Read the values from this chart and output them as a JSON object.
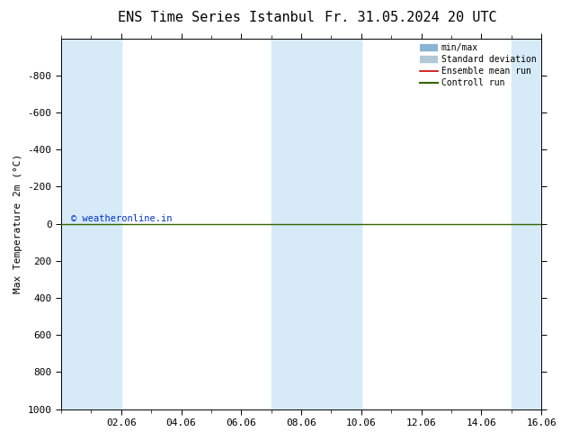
{
  "title": "ENS Time Series Istanbul",
  "title2": "Fr. 31.05.2024 20 UTC",
  "ylabel": "Max Temperature 2m (°C)",
  "ylim_bottom": 1000,
  "ylim_top": -1000,
  "yticks": [
    -800,
    -600,
    -400,
    -200,
    0,
    200,
    400,
    600,
    800,
    1000
  ],
  "xlim_min": 0,
  "xlim_max": 16,
  "xtick_labels": [
    "02.06",
    "04.06",
    "06.06",
    "08.06",
    "10.06",
    "12.06",
    "14.06",
    "16.06"
  ],
  "xtick_positions": [
    2,
    4,
    6,
    8,
    10,
    12,
    14,
    16
  ],
  "bg_color": "#ffffff",
  "plot_bg_color": "#ffffff",
  "band_color": "#d6eaf8",
  "band_positions": [
    [
      0,
      2
    ],
    [
      7,
      9
    ],
    [
      9,
      10
    ],
    [
      15,
      16
    ]
  ],
  "control_run_y": 0,
  "control_run_color": "#336600",
  "ensemble_mean_color": "#cc0000",
  "minmax_line_color": "#8ab4d4",
  "std_line_color": "#b0c8d8",
  "legend_labels": [
    "min/max",
    "Standard deviation",
    "Ensemble mean run",
    "Controll run"
  ],
  "copyright_text": "© weatheronline.in",
  "copyright_color": "#0033cc",
  "title_fontsize": 11,
  "axis_fontsize": 8,
  "tick_fontsize": 8
}
